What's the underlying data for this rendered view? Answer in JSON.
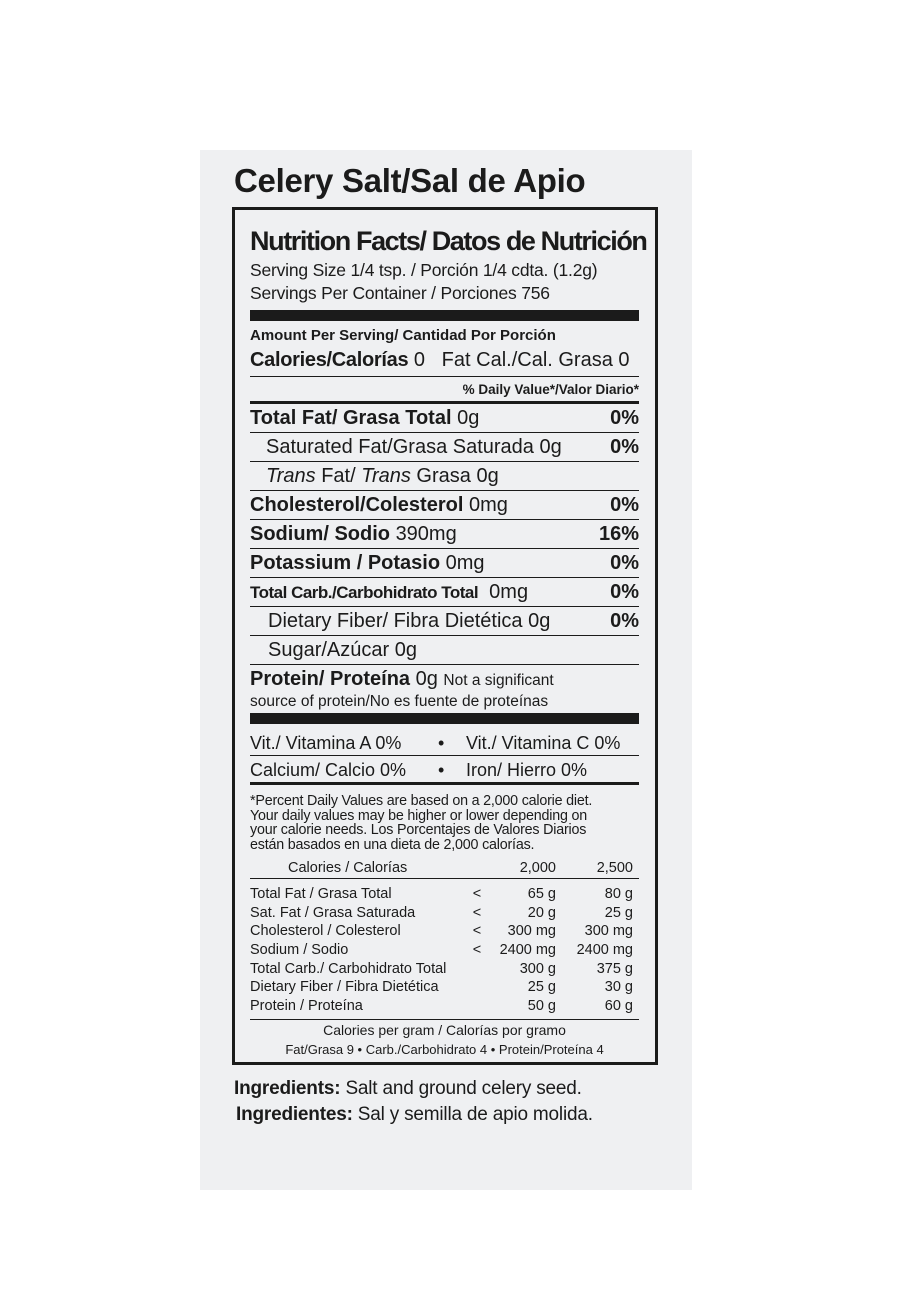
{
  "title": "Celery Salt/Sal de Apio",
  "facts": {
    "heading": "Nutrition Facts/ Datos de Nutrición",
    "serving_size": "Serving Size 1/4 tsp. / Porción 1/4 cdta. (1.2g)",
    "servings": "Servings Per Container / Porciones 756",
    "amount_per_serving": "Amount Per Serving/ Cantidad Por Porción",
    "calories": {
      "label": "Calories/Calorías",
      "value": "0",
      "fat_calories": "Fat Cal./Cal. Grasa 0"
    },
    "daily_value_header": "% Daily Value*/Valor Diario*",
    "total_fat": {
      "name": "Total Fat/ Grasa Total",
      "amount": "0g",
      "dv": "0%"
    },
    "saturated_fat": {
      "name": "Saturated Fat/Grasa Saturada",
      "amount": "0g",
      "dv": "0%"
    },
    "trans_fat": {
      "name_parts": [
        "Trans",
        "Fat/",
        "Trans",
        "Grasa"
      ],
      "amount": "0g"
    },
    "cholesterol": {
      "name": "Cholesterol/Colesterol",
      "amount": "0mg",
      "dv": "0%"
    },
    "sodium": {
      "name": "Sodium/ Sodio",
      "amount": "390mg",
      "dv": "16%"
    },
    "potassium": {
      "name": "Potassium / Potasio",
      "amount": "0mg",
      "dv": "0%"
    },
    "total_carb": {
      "name": "Total Carb./Carbohidrato Total",
      "amount": "0mg",
      "dv": "0%"
    },
    "dietary_fiber": {
      "name": "Dietary Fiber/ Fibra Dietética",
      "amount": "0g",
      "dv": "0%"
    },
    "sugar": {
      "name": "Sugar/Azúcar",
      "amount": "0g"
    },
    "protein": {
      "name": "Protein/ Proteína",
      "amount": "0g",
      "note_start": "Not a significant",
      "note_end": "source of protein/No es fuente de proteínas"
    },
    "vitamins": [
      {
        "left": "Vit./ Vitamina A 0%",
        "separator": "•",
        "right": "Vit./ Vitamina C 0%"
      },
      {
        "left": "Calcium/ Calcio 0%",
        "separator": "•",
        "right": "Iron/ Hierro 0%"
      }
    ],
    "footnote": [
      "*Percent Daily Values are based on a 2,000 calorie diet.",
      "Your daily values may be higher or lower depending on",
      "your calorie needs. Los Porcentajes de Valores Diarios",
      "están basados en una dieta de 2,000 calorías."
    ],
    "table": {
      "header": [
        "Calories / Calorías",
        "2,000",
        "2,500"
      ],
      "rows": [
        {
          "name": "Total Fat / Grasa Total",
          "op": "<",
          "v1": "65 g",
          "v2": "80 g"
        },
        {
          "name": "Sat. Fat / Grasa Saturada",
          "op": "<",
          "v1": "20 g",
          "v2": "25 g"
        },
        {
          "name": "Cholesterol / Colesterol",
          "op": "<",
          "v1": "300 mg",
          "v2": "300 mg"
        },
        {
          "name": "Sodium / Sodio",
          "op": "<",
          "v1": "2400 mg",
          "v2": "2400 mg"
        },
        {
          "name": "Total Carb./ Carbohidrato Total",
          "v1": "300 g",
          "v2": "375 g"
        },
        {
          "name": "Dietary Fiber / Fibra Dietética",
          "v1": "25 g",
          "v2": "30 g"
        },
        {
          "name": "Protein / Proteína",
          "v1": "50 g",
          "v2": "60 g"
        }
      ]
    },
    "calories_per_gram": "Calories per gram / Calorías por gramo",
    "calories_per_gram_detail": "Fat/Grasa 9 • Carb./Carbohidrato 4 • Protein/Proteína 4"
  },
  "ingredients": {
    "en_label": "Ingredients:",
    "en_text": "Salt and ground celery seed.",
    "es_label": "Ingredientes:",
    "es_text": "Sal y semilla de apio molida."
  }
}
